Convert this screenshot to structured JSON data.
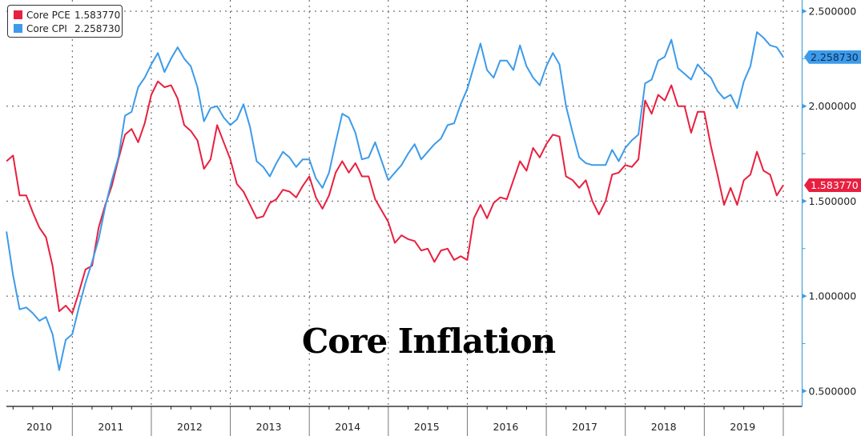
{
  "chart_data": {
    "type": "line",
    "title": "Core Inflation",
    "xlabel": "",
    "ylabel": "",
    "x_start": "2010-02",
    "x_frequency": "monthly",
    "x_tick_labels": [
      "2010",
      "2011",
      "2012",
      "2013",
      "2014",
      "2015",
      "2016",
      "2017",
      "2018",
      "2019"
    ],
    "y_tick_labels": [
      "0.500000",
      "1.000000",
      "1.500000",
      "2.000000",
      "2.500000"
    ],
    "y_ticks": [
      0.5,
      1.0,
      1.5,
      2.0,
      2.5
    ],
    "ylim": [
      0.43,
      2.56
    ],
    "xlim": [
      2010.0,
      2020.25
    ],
    "grid": true,
    "legend_position": "top-left",
    "series": [
      {
        "name": "Core PCE",
        "last_value": "1.583770",
        "color": "#e8203f",
        "values": [
          1.71,
          1.74,
          1.53,
          1.53,
          1.44,
          1.36,
          1.31,
          1.16,
          0.92,
          0.95,
          0.91,
          1.02,
          1.14,
          1.16,
          1.36,
          1.48,
          1.58,
          1.72,
          1.85,
          1.88,
          1.81,
          1.91,
          2.06,
          2.13,
          2.1,
          2.11,
          2.04,
          1.9,
          1.87,
          1.82,
          1.67,
          1.72,
          1.9,
          1.81,
          1.72,
          1.59,
          1.55,
          1.48,
          1.41,
          1.42,
          1.49,
          1.51,
          1.56,
          1.55,
          1.52,
          1.58,
          1.63,
          1.52,
          1.46,
          1.53,
          1.65,
          1.71,
          1.65,
          1.7,
          1.63,
          1.63,
          1.51,
          1.45,
          1.39,
          1.28,
          1.32,
          1.3,
          1.29,
          1.24,
          1.25,
          1.18,
          1.24,
          1.25,
          1.19,
          1.21,
          1.19,
          1.41,
          1.48,
          1.41,
          1.49,
          1.52,
          1.51,
          1.61,
          1.71,
          1.66,
          1.78,
          1.73,
          1.8,
          1.85,
          1.84,
          1.63,
          1.61,
          1.57,
          1.61,
          1.5,
          1.43,
          1.5,
          1.64,
          1.65,
          1.69,
          1.68,
          1.72,
          2.03,
          1.96,
          2.06,
          2.03,
          2.11,
          2.0,
          2.0,
          1.86,
          1.97,
          1.97,
          1.79,
          1.64,
          1.48,
          1.57,
          1.48,
          1.61,
          1.64,
          1.76,
          1.66,
          1.64,
          1.53,
          1.58377
        ]
      },
      {
        "name": "Core CPI",
        "last_value": "2.258730",
        "color": "#3d9be9",
        "values": [
          1.34,
          1.11,
          0.93,
          0.94,
          0.91,
          0.87,
          0.89,
          0.8,
          0.61,
          0.77,
          0.8,
          0.94,
          1.07,
          1.18,
          1.3,
          1.47,
          1.61,
          1.73,
          1.95,
          1.97,
          2.1,
          2.15,
          2.22,
          2.28,
          2.18,
          2.25,
          2.31,
          2.25,
          2.21,
          2.1,
          1.92,
          1.99,
          2.0,
          1.94,
          1.9,
          1.93,
          2.01,
          1.89,
          1.71,
          1.68,
          1.63,
          1.7,
          1.76,
          1.73,
          1.68,
          1.72,
          1.72,
          1.62,
          1.57,
          1.65,
          1.81,
          1.96,
          1.94,
          1.86,
          1.72,
          1.73,
          1.81,
          1.71,
          1.61,
          1.65,
          1.69,
          1.75,
          1.8,
          1.72,
          1.76,
          1.8,
          1.83,
          1.9,
          1.91,
          2.01,
          2.09,
          2.21,
          2.33,
          2.19,
          2.15,
          2.24,
          2.24,
          2.19,
          2.32,
          2.21,
          2.15,
          2.11,
          2.21,
          2.28,
          2.22,
          2.0,
          1.86,
          1.73,
          1.7,
          1.69,
          1.69,
          1.69,
          1.77,
          1.71,
          1.78,
          1.82,
          1.85,
          2.12,
          2.14,
          2.24,
          2.26,
          2.35,
          2.2,
          2.17,
          2.14,
          2.22,
          2.18,
          2.15,
          2.08,
          2.04,
          2.06,
          1.99,
          2.13,
          2.21,
          2.39,
          2.36,
          2.32,
          2.31,
          2.25873
        ]
      }
    ]
  },
  "colors": {
    "pce": "#e8203f",
    "cpi": "#3d9be9",
    "axis": "#4a9fd8"
  }
}
